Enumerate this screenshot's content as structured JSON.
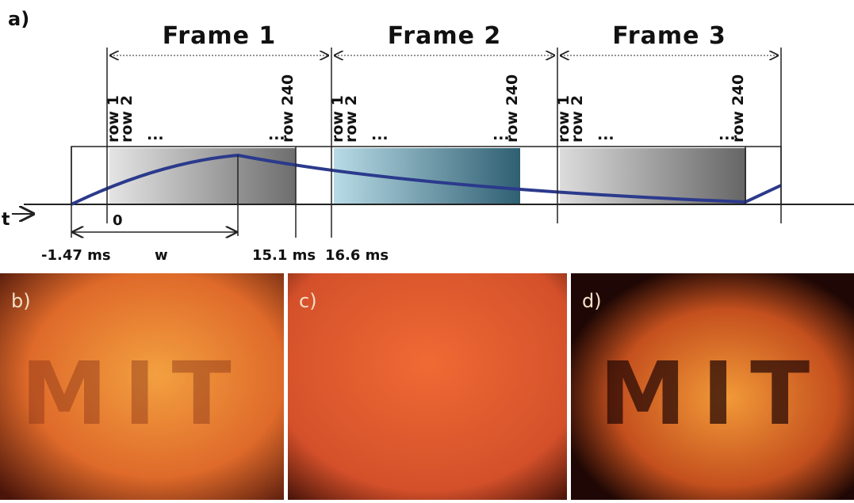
{
  "label": "a)",
  "frames": [
    {
      "title": "Frame 1",
      "rows": [
        "row 1",
        "row 2",
        "...",
        "...",
        "row 240"
      ]
    },
    {
      "title": "Frame 2",
      "rows": [
        "row 1",
        "row 2",
        "...",
        "...",
        "row 240"
      ]
    },
    {
      "title": "Frame 3",
      "rows": [
        "row 1",
        "row 2",
        "...",
        "...",
        "row 240"
      ]
    }
  ],
  "axis": {
    "t": "t",
    "zero": "0",
    "w": "w",
    "start": "-1.47 ms",
    "readout_end": "15.1 ms",
    "frame_end": "16.6 ms"
  },
  "panels": [
    {
      "label": "b)",
      "text": "MIT"
    },
    {
      "label": "c)"
    },
    {
      "label": "d)",
      "text": "MIT"
    }
  ]
}
